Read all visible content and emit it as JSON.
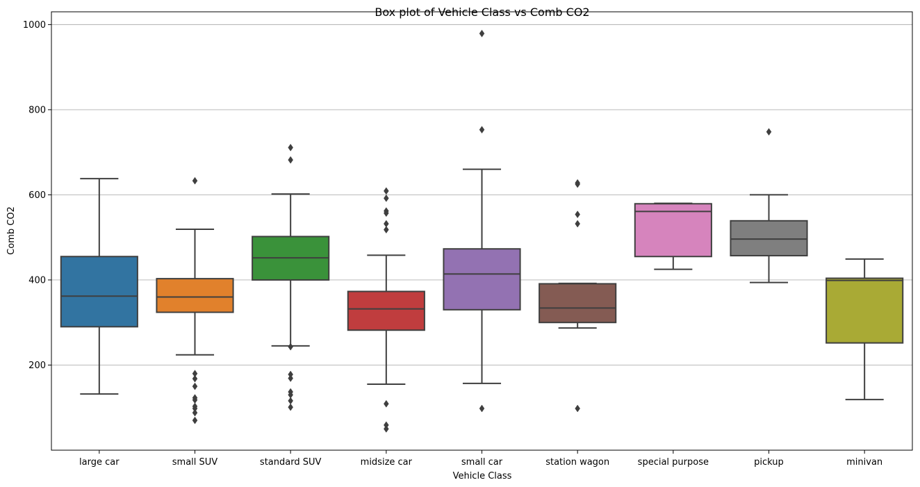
{
  "chart_data": {
    "type": "box",
    "title": "Box plot of Vehicle Class vs Comb CO2",
    "xlabel": "Vehicle Class",
    "ylabel": "Comb CO2",
    "ylim": [
      0,
      1030
    ],
    "yticks": [
      200,
      400,
      600,
      800,
      1000
    ],
    "grid": "y",
    "categories": [
      "large car",
      "small SUV",
      "standard SUV",
      "midsize car",
      "small car",
      "station wagon",
      "special purpose",
      "pickup",
      "minivan"
    ],
    "colors": [
      "#3274a1",
      "#e1812c",
      "#3a923a",
      "#c03d3e",
      "#9372b2",
      "#845b53",
      "#d684bd",
      "#7f7f7f",
      "#a9aa35"
    ],
    "boxes": [
      {
        "whisker_low": 132,
        "q1": 290,
        "median": 362,
        "q3": 455,
        "whisker_high": 638,
        "outliers": []
      },
      {
        "whisker_low": 224,
        "q1": 324,
        "median": 360,
        "q3": 403,
        "whisker_high": 519,
        "outliers": [
          633,
          180,
          168,
          150,
          123,
          118,
          103,
          98,
          88,
          70
        ]
      },
      {
        "whisker_low": 245,
        "q1": 400,
        "median": 452,
        "q3": 502,
        "whisker_high": 602,
        "outliers": [
          711,
          682,
          243,
          178,
          169,
          137,
          130,
          116,
          101
        ]
      },
      {
        "whisker_low": 155,
        "q1": 282,
        "median": 332,
        "q3": 373,
        "whisker_high": 458,
        "outliers": [
          609,
          592,
          562,
          557,
          532,
          518,
          109,
          59,
          50
        ]
      },
      {
        "whisker_low": 157,
        "q1": 330,
        "median": 414,
        "q3": 473,
        "whisker_high": 660,
        "outliers": [
          979,
          753,
          98
        ]
      },
      {
        "whisker_low": 287,
        "q1": 300,
        "median": 334,
        "q3": 391,
        "whisker_high": 392,
        "outliers": [
          628,
          625,
          554,
          532,
          98
        ]
      },
      {
        "whisker_low": 425,
        "q1": 455,
        "median": 561,
        "q3": 579,
        "whisker_high": 580,
        "outliers": []
      },
      {
        "whisker_low": 394,
        "q1": 457,
        "median": 496,
        "q3": 539,
        "whisker_high": 600,
        "outliers": [
          748
        ]
      },
      {
        "whisker_low": 119,
        "q1": 252,
        "median": 399,
        "q3": 404,
        "whisker_high": 449,
        "outliers": []
      }
    ]
  }
}
